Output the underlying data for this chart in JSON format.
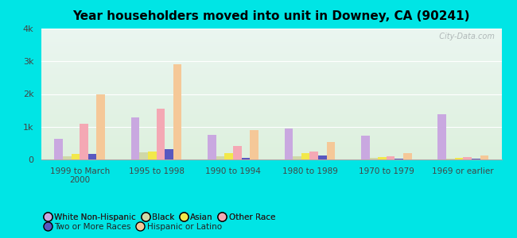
{
  "title": "Year householders moved into unit in Downey, CA (90241)",
  "categories": [
    "1999 to March\n2000",
    "1995 to 1998",
    "1990 to 1994",
    "1980 to 1989",
    "1970 to 1979",
    "1969 or earlier"
  ],
  "series_order": [
    "White Non-Hispanic",
    "Black",
    "Asian",
    "Other Race",
    "Two or More Races",
    "Hispanic or Latino"
  ],
  "series": {
    "White Non-Hispanic": [
      620,
      1280,
      750,
      950,
      730,
      1380
    ],
    "Black": [
      100,
      230,
      100,
      100,
      50,
      30
    ],
    "Asian": [
      180,
      250,
      200,
      190,
      70,
      50
    ],
    "Other Race": [
      1100,
      1560,
      420,
      250,
      100,
      80
    ],
    "Two or More Races": [
      170,
      310,
      60,
      120,
      30,
      20
    ],
    "Hispanic or Latino": [
      2000,
      2900,
      900,
      530,
      200,
      130
    ]
  },
  "colors": {
    "White Non-Hispanic": "#c9a8e0",
    "Black": "#cfd8a8",
    "Asian": "#f2e84a",
    "Other Race": "#f4a8b4",
    "Two or More Races": "#5858c0",
    "Hispanic or Latino": "#f5c898"
  },
  "legend_row1": [
    "White Non-Hispanic",
    "Black",
    "Asian",
    "Other Race"
  ],
  "legend_row2": [
    "Two or More Races",
    "Hispanic or Latino"
  ],
  "ylim": [
    0,
    4000
  ],
  "yticks": [
    0,
    1000,
    2000,
    3000,
    4000
  ],
  "ytick_labels": [
    "0",
    "1k",
    "2k",
    "3k",
    "4k"
  ],
  "bg_color": "#00e5e5",
  "plot_bg_top": "#eaf5f0",
  "plot_bg_bottom": "#ddf0dd",
  "watermark": "  City-Data.com"
}
